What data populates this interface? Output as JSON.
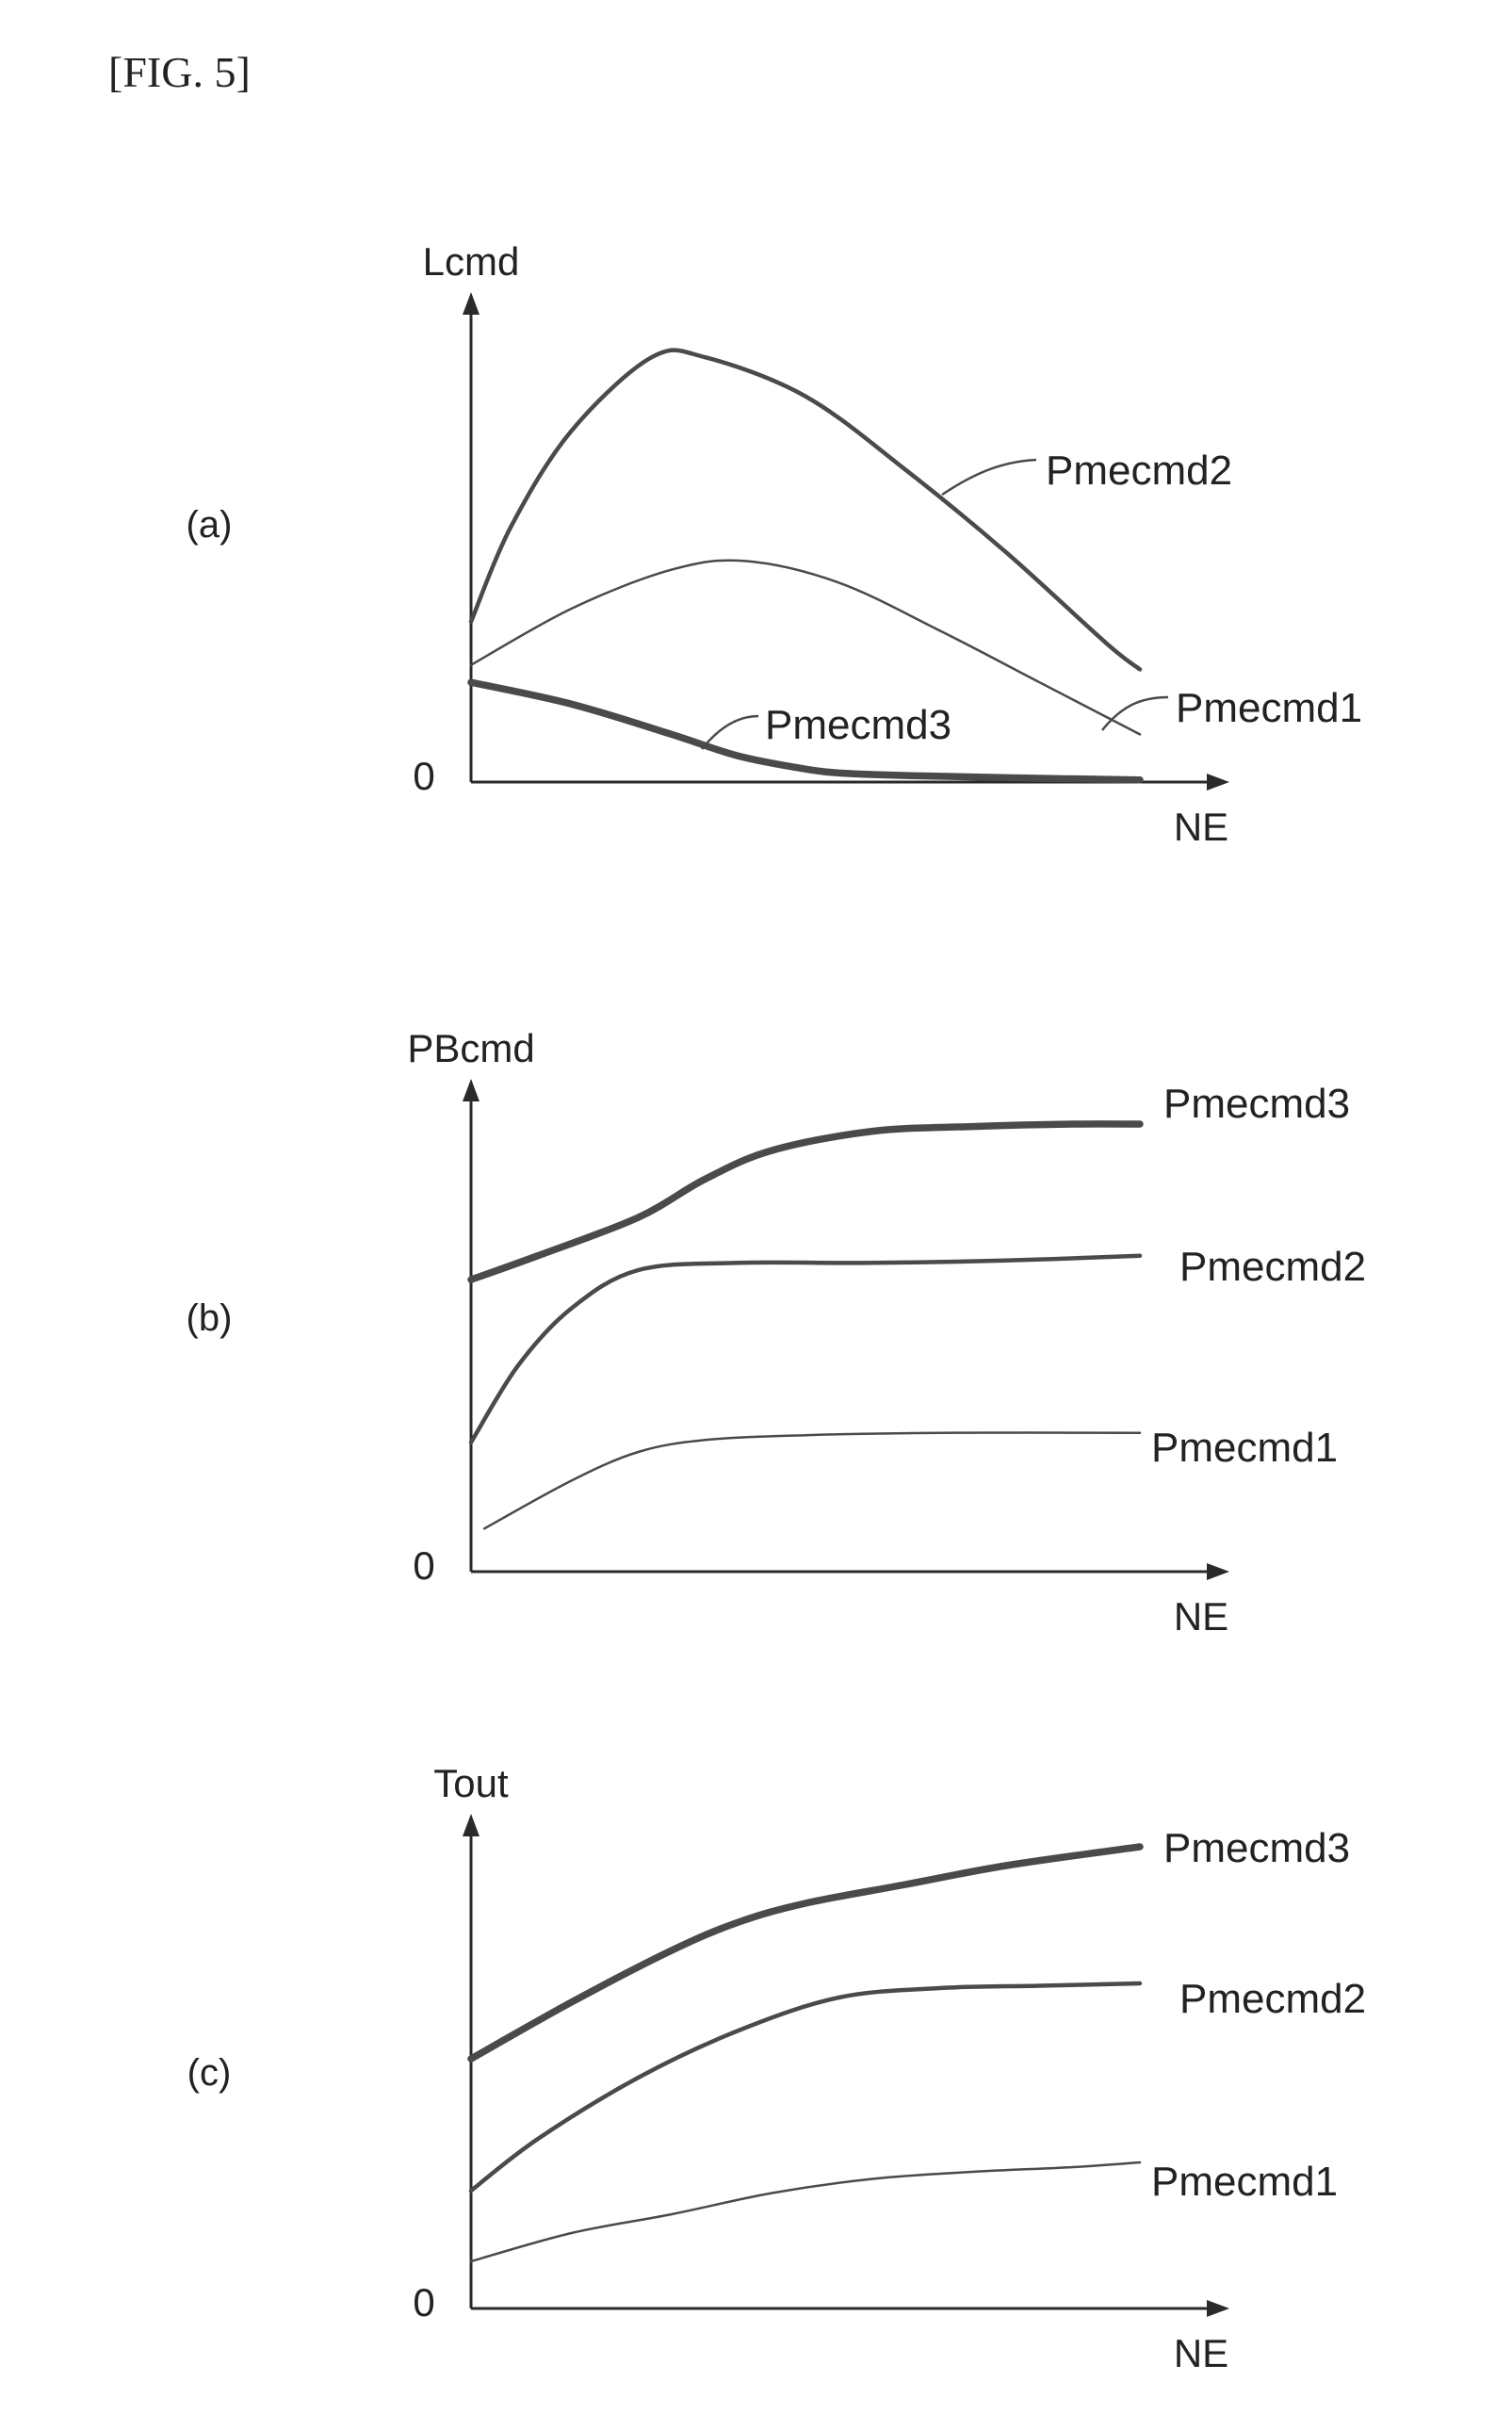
{
  "figure_label": "[FIG. 5]",
  "chart_data": [
    {
      "type": "line",
      "panel_label": "(a)",
      "ylabel": "Lcmd",
      "xlabel": "NE",
      "origin_label": "0",
      "x_range": [
        0,
        10
      ],
      "y_range": [
        0,
        10
      ],
      "series": [
        {
          "name": "Pmecmd2",
          "weight": "medium",
          "x": [
            0,
            0.6,
            1.5,
            2.7,
            3.5,
            5.0,
            6.5,
            8.0,
            9.5,
            10
          ],
          "y": [
            3.7,
            5.9,
            8.1,
            9.8,
            9.8,
            8.9,
            7.2,
            5.3,
            3.2,
            2.6
          ]
        },
        {
          "name": "Pmecmd1",
          "weight": "thin",
          "x": [
            0,
            1.5,
            3.0,
            4.1,
            5.5,
            7.0,
            8.5,
            10
          ],
          "y": [
            2.7,
            4.0,
            4.9,
            5.1,
            4.6,
            3.5,
            2.3,
            1.1
          ]
        },
        {
          "name": "Pmecmd3",
          "weight": "thick",
          "x": [
            0,
            1.5,
            3.0,
            4.0,
            5.0,
            5.6,
            6.5,
            8.0,
            10
          ],
          "y": [
            2.3,
            1.8,
            1.1,
            0.6,
            0.3,
            0.2,
            0.15,
            0.1,
            0.05
          ]
        }
      ]
    },
    {
      "type": "line",
      "panel_label": "(b)",
      "ylabel": "PBcmd",
      "xlabel": "NE",
      "origin_label": "0",
      "x_range": [
        0,
        10
      ],
      "y_range": [
        0,
        10
      ],
      "series": [
        {
          "name": "Pmecmd3",
          "weight": "thick",
          "x": [
            0,
            1.0,
            2.5,
            3.5,
            4.5,
            6.0,
            7.5,
            9.0,
            10
          ],
          "y": [
            6.1,
            6.6,
            7.4,
            8.2,
            8.8,
            9.2,
            9.3,
            9.35,
            9.35
          ]
        },
        {
          "name": "Pmecmd2",
          "weight": "medium",
          "x": [
            0,
            0.7,
            1.5,
            2.5,
            4.0,
            6.0,
            8.0,
            10
          ],
          "y": [
            2.7,
            4.3,
            5.5,
            6.3,
            6.45,
            6.45,
            6.5,
            6.6
          ]
        },
        {
          "name": "Pmecmd1",
          "weight": "thin",
          "x": [
            0.2,
            1.5,
            2.5,
            3.5,
            5.0,
            7.0,
            10
          ],
          "y": [
            0.9,
            1.9,
            2.5,
            2.75,
            2.85,
            2.9,
            2.9
          ]
        }
      ]
    },
    {
      "type": "line",
      "panel_label": "(c)",
      "ylabel": "Tout",
      "xlabel": "NE",
      "origin_label": "0",
      "x_range": [
        0,
        10
      ],
      "y_range": [
        0,
        10
      ],
      "series": [
        {
          "name": "Pmecmd3",
          "weight": "thick",
          "x": [
            0,
            1.5,
            3.0,
            4.0,
            5.0,
            6.5,
            8.0,
            10
          ],
          "y": [
            5.3,
            6.5,
            7.6,
            8.2,
            8.6,
            9.0,
            9.4,
            9.8
          ]
        },
        {
          "name": "Pmecmd2",
          "weight": "medium",
          "x": [
            0,
            1.0,
            2.5,
            4.0,
            5.5,
            7.0,
            8.5,
            10
          ],
          "y": [
            2.5,
            3.6,
            4.9,
            5.9,
            6.6,
            6.8,
            6.85,
            6.9
          ]
        },
        {
          "name": "Pmecmd1",
          "weight": "thin",
          "x": [
            0,
            1.5,
            3.0,
            4.5,
            6.0,
            7.5,
            9.0,
            10
          ],
          "y": [
            1.0,
            1.6,
            2.0,
            2.45,
            2.75,
            2.9,
            3.0,
            3.1
          ]
        }
      ]
    }
  ]
}
